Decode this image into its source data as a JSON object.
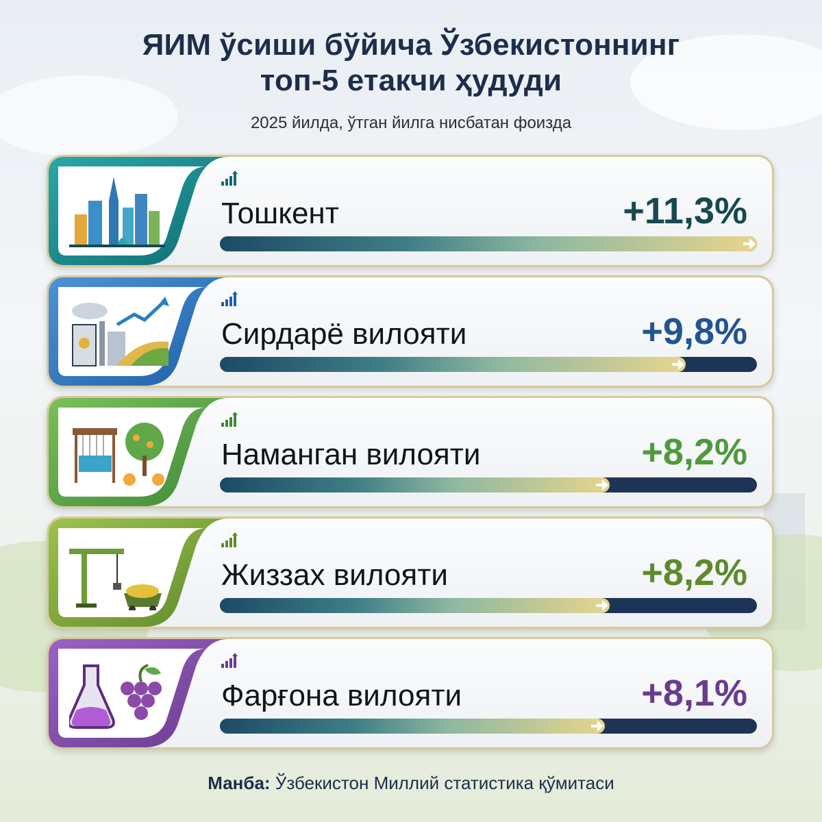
{
  "title_line1": "ЯИМ ўсиши бўйича Ўзбекистоннинг",
  "title_line2": "топ-5 етакчи ҳудуди",
  "subtitle": "2025 йилда, ўтган йилга нисбатан фоизда",
  "source_label": "Манба:",
  "source_text": "Ўзбекистон Миллий статистика қўмитаси",
  "chart_data": {
    "type": "bar",
    "orientation": "horizontal",
    "title": "ЯИМ ўсиши бўйича Ўзбекистоннинг топ-5 етакчи ҳудуди",
    "subtitle": "2025 йилда, ўтган йилга нисбатан фоизда",
    "categories": [
      "Тошкент",
      "Сирдарё вилояти",
      "Наманган вилояти",
      "Жиззах вилояти",
      "Фарғона вилояти"
    ],
    "values": [
      11.3,
      9.8,
      8.2,
      8.2,
      8.1
    ],
    "labels": [
      "+11,3%",
      "+9,8%",
      "+8,2%",
      "+8,2%",
      "+8,1%"
    ],
    "xlim": [
      0,
      11.3
    ],
    "grid": false,
    "legend": "none"
  },
  "rows": [
    {
      "name": "Тошкент",
      "label": "+11,3%",
      "value": 11.3,
      "accent": "#0f6d74",
      "accent2": "#2aa7a8",
      "value_color": "#17494f",
      "icon": "city-skyline-icon"
    },
    {
      "name": "Сирдарё вилояти",
      "label": "+9,8%",
      "value": 9.8,
      "accent": "#1f5fa8",
      "accent2": "#4b94d6",
      "value_color": "#22558f",
      "icon": "industry-farm-icon"
    },
    {
      "name": "Наманган вилояти",
      "label": "+8,2%",
      "value": 8.2,
      "accent": "#3d8a3a",
      "accent2": "#7cbf5a",
      "value_color": "#4e9a3c",
      "icon": "loom-orchard-icon"
    },
    {
      "name": "Жиззах вилояти",
      "label": "+8,2%",
      "value": 8.2,
      "accent": "#5f8a2c",
      "accent2": "#9cc24e",
      "value_color": "#5f8a2c",
      "icon": "crane-mining-icon"
    },
    {
      "name": "Фарғона вилояти",
      "label": "+8,1%",
      "value": 8.1,
      "accent": "#6a3b8f",
      "accent2": "#9a63c4",
      "value_color": "#6a3b8f",
      "icon": "flask-grapes-icon"
    }
  ]
}
